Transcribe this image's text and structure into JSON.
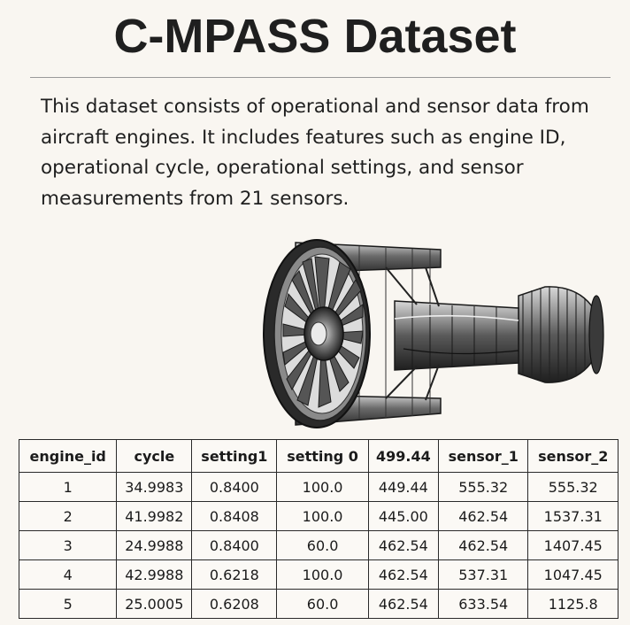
{
  "title": "C-MPASS Dataset",
  "description": "This dataset consists of operational and sensor data from aircraft engines. It includes features such as engine ID, operational cycle, operational settings, and sensor measurements from 21 sensors.",
  "illustration": {
    "icon": "jet-engine-cutaway-illustration"
  },
  "table": {
    "headers": [
      "engine_id",
      "cycle",
      "setting1",
      "setting 0",
      "499.44",
      "sensor_1",
      "sensor_2"
    ],
    "rows": [
      [
        "1",
        "34.9983",
        "0.8400",
        "100.0",
        "449.44",
        "555.32",
        "555.32"
      ],
      [
        "2",
        "41.9982",
        "0.8408",
        "100.0",
        "445.00",
        "462.54",
        "1537.31"
      ],
      [
        "3",
        "24.9988",
        "0.8400",
        "60.0",
        "462.54",
        "462.54",
        "1407.45"
      ],
      [
        "4",
        "42.9988",
        "0.6218",
        "100.0",
        "462.54",
        "537.31",
        "1047.45"
      ],
      [
        "5",
        "25.0005",
        "0.6208",
        "60.0",
        "462.54",
        "633.54",
        "1125.8"
      ]
    ]
  }
}
